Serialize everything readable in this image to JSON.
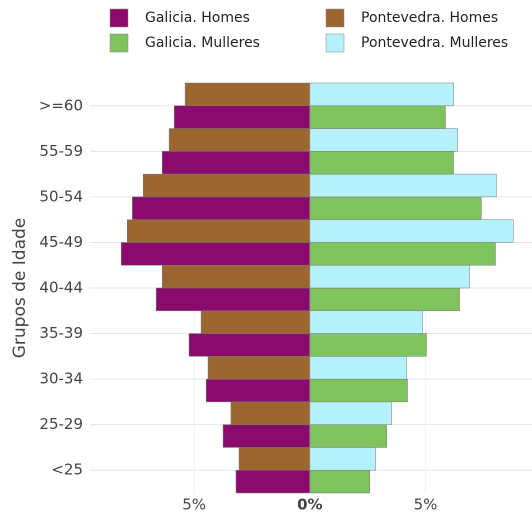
{
  "chart_data": {
    "type": "pyramid",
    "y_label": "Grupos de Idade",
    "categories": [
      ">=60",
      "55-59",
      "50-54",
      "45-49",
      "40-44",
      "35-39",
      "30-34",
      "25-29",
      "<25"
    ],
    "series": [
      {
        "name": "Galicia. Homes",
        "color": "#8b0a6e",
        "values": [
          -5.86,
          -6.38,
          -7.67,
          -8.15,
          -6.64,
          -5.22,
          -4.48,
          -3.75,
          -3.19
        ]
      },
      {
        "name": "Pontevedra. Homes",
        "color": "#9c6630",
        "values": [
          -5.39,
          -6.08,
          -7.2,
          -7.89,
          -6.38,
          -4.7,
          -4.4,
          -3.41,
          -3.06
        ]
      },
      {
        "name": "Galicia. Mulleres",
        "color": "#7ec35c",
        "values": [
          5.86,
          6.21,
          7.41,
          8.02,
          6.47,
          5.04,
          4.22,
          3.32,
          2.59
        ]
      },
      {
        "name": "Pontevedra. Mulleres",
        "color": "#b4f1fa",
        "values": [
          6.21,
          6.38,
          8.06,
          8.79,
          6.9,
          4.87,
          4.18,
          3.53,
          2.84
        ]
      }
    ],
    "xlim": [
      -9.5,
      9.6
    ],
    "xticks": [
      {
        "value": -5,
        "label": "5%"
      },
      {
        "value": 0,
        "label": "0%"
      },
      {
        "value": 5,
        "label": "5%"
      }
    ],
    "grid": true
  }
}
